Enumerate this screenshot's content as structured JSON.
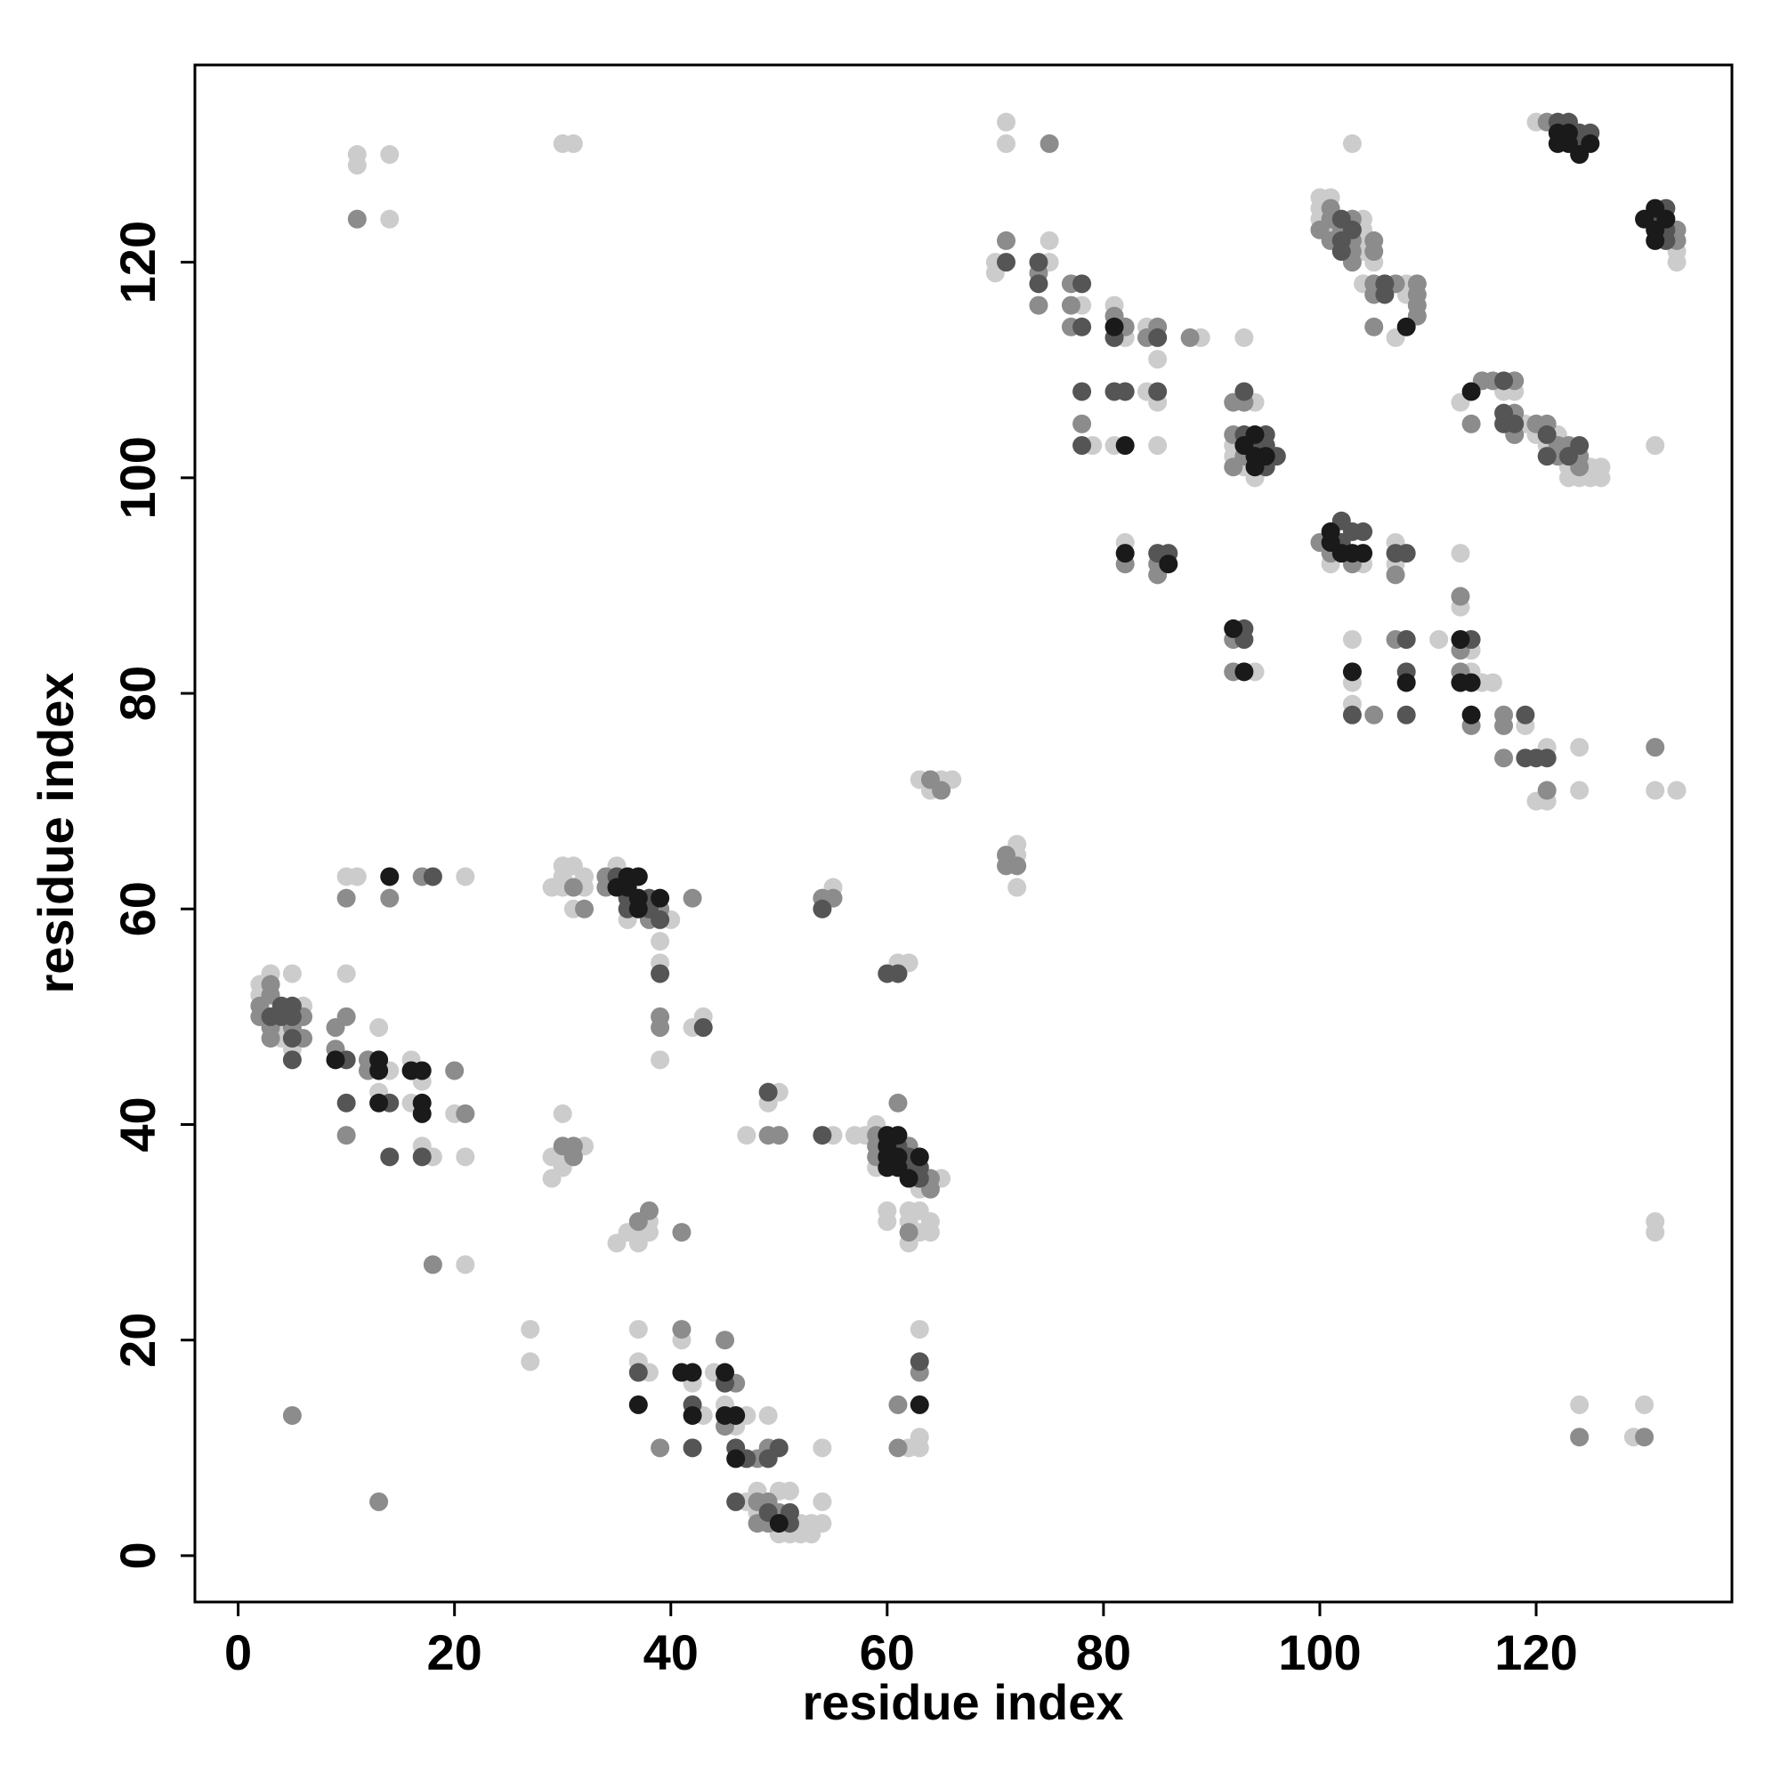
{
  "chart_data": {
    "type": "scatter",
    "xlabel": "residue index",
    "ylabel": "residue index",
    "xlim": [
      -4,
      138.1
    ],
    "ylim": [
      -4.3,
      138.3
    ],
    "xticks": [
      0,
      20,
      40,
      60,
      80,
      100,
      120
    ],
    "yticks": [
      0,
      20,
      40,
      60,
      80,
      100,
      120
    ],
    "series": [
      {
        "color": "#cccccc",
        "x": [
          11,
          11,
          14,
          14,
          30,
          31,
          71,
          71,
          75,
          70,
          70,
          75,
          78,
          81,
          82,
          84,
          85,
          89,
          93,
          79,
          84,
          85,
          81,
          85,
          94,
          92,
          92,
          93,
          94,
          82,
          94,
          100,
          101,
          100,
          100,
          104,
          101,
          104,
          104,
          104,
          105,
          104,
          108,
          108,
          107,
          103,
          113,
          117,
          118,
          119,
          120,
          121,
          122,
          123,
          125,
          126,
          123,
          124,
          125,
          126,
          131,
          120,
          133,
          133,
          101,
          104,
          107,
          107,
          111,
          103,
          103,
          103,
          113,
          113,
          114,
          114,
          115,
          116,
          119,
          121,
          121,
          120,
          124,
          124,
          131,
          133,
          65,
          66,
          64,
          63,
          72,
          72,
          72,
          10,
          11,
          21,
          10,
          2,
          3,
          5,
          2,
          6,
          4,
          4,
          5,
          13,
          14,
          16,
          13,
          16,
          17,
          20,
          17,
          18,
          21,
          21,
          29,
          30,
          32,
          30,
          31,
          30,
          32,
          31,
          35,
          36,
          40,
          39,
          39,
          39,
          42,
          43,
          29,
          29,
          30,
          32,
          30,
          30,
          35,
          36,
          38,
          37,
          38,
          37,
          47,
          50,
          49,
          55,
          55,
          57,
          58,
          59,
          65,
          63,
          59,
          61,
          62,
          60,
          60,
          62,
          63,
          62,
          64,
          63,
          64,
          62,
          27,
          27,
          37,
          37,
          38,
          41,
          44,
          42,
          45,
          43,
          47,
          46,
          49,
          47,
          48,
          48,
          50,
          51,
          52,
          53,
          50,
          51,
          52,
          53,
          54,
          54,
          54,
          62,
          63,
          63,
          63,
          124,
          129,
          130,
          131,
          131
        ],
        "y": [
          130,
          129,
          130,
          124,
          131,
          131,
          133,
          131,
          122,
          120,
          119,
          120,
          116,
          116,
          113,
          114,
          111,
          113,
          113,
          103,
          108,
          107,
          103,
          103,
          107,
          103,
          102,
          101,
          100,
          94,
          82,
          126,
          126,
          125,
          124,
          124,
          123,
          123,
          122,
          121,
          120,
          118,
          118,
          117,
          113,
          131,
          107,
          108,
          108,
          105,
          104,
          103,
          104,
          101,
          101,
          101,
          100,
          100,
          100,
          100,
          103,
          133,
          121,
          120,
          92,
          92,
          94,
          92,
          85,
          85,
          81,
          79,
          93,
          88,
          84,
          82,
          81,
          81,
          77,
          75,
          70,
          70,
          75,
          71,
          71,
          71,
          72,
          72,
          71,
          72,
          66,
          65,
          62,
          63,
          63,
          63,
          54,
          53,
          54,
          54,
          52,
          51,
          49,
          48,
          47,
          49,
          45,
          46,
          43,
          42,
          44,
          41,
          38,
          37,
          37,
          27,
          62,
          62,
          62,
          64,
          64,
          63,
          63,
          60,
          64,
          59,
          59,
          57,
          55,
          46,
          49,
          50,
          37,
          35,
          41,
          38,
          37,
          36,
          29,
          30,
          31,
          30,
          30,
          29,
          39,
          43,
          42,
          39,
          62,
          39,
          39,
          40,
          35,
          34,
          36,
          55,
          55,
          32,
          31,
          32,
          32,
          31,
          31,
          30,
          30,
          29,
          21,
          18,
          21,
          18,
          17,
          20,
          17,
          16,
          14,
          13,
          13,
          12,
          13,
          5,
          6,
          4,
          6,
          6,
          3,
          3,
          2,
          2,
          2,
          2,
          5,
          3,
          10,
          10,
          21,
          11,
          10,
          14,
          11,
          14,
          31,
          30
        ]
      },
      {
        "color": "#8c8c8c",
        "x": [
          11,
          75,
          71,
          74,
          74,
          77,
          77,
          77,
          81,
          82,
          84,
          85,
          88,
          78,
          92,
          93,
          92,
          93,
          92,
          82,
          85,
          85,
          92,
          92,
          101,
          101,
          103,
          100,
          102,
          101,
          103,
          105,
          103,
          105,
          103,
          105,
          107,
          109,
          105,
          109,
          109,
          109,
          105,
          115,
          116,
          118,
          114,
          118,
          118,
          120,
          121,
          122,
          122,
          123,
          124,
          124,
          121,
          133,
          133,
          100,
          101,
          103,
          107,
          105,
          107,
          113,
          113,
          113,
          114,
          117,
          117,
          117,
          121,
          131,
          64,
          65,
          71,
          71,
          72,
          17,
          10,
          14,
          3,
          2,
          3,
          2,
          6,
          3,
          5,
          3,
          6,
          9,
          10,
          9,
          12,
          12,
          20,
          21,
          10,
          18,
          31,
          32,
          34,
          34,
          38,
          39,
          39,
          39,
          42,
          30,
          31,
          31,
          37,
          38,
          41,
          49,
          50,
          54,
          55,
          59,
          59,
          62,
          59,
          64,
          64,
          61,
          62,
          5,
          13,
          41,
          45,
          46,
          45,
          48,
          49,
          39,
          49,
          48,
          50,
          48,
          49,
          61,
          61,
          63,
          124,
          130
        ],
        "y": [
          124,
          131,
          122,
          119,
          116,
          118,
          116,
          114,
          115,
          114,
          113,
          114,
          113,
          105,
          107,
          107,
          104,
          102,
          101,
          92,
          92,
          91,
          85,
          82,
          125,
          124,
          124,
          123,
          123,
          122,
          122,
          122,
          121,
          121,
          120,
          118,
          118,
          118,
          117,
          117,
          116,
          115,
          114,
          109,
          109,
          109,
          105,
          106,
          104,
          105,
          105,
          102,
          103,
          103,
          102,
          101,
          133,
          123,
          122,
          94,
          93,
          92,
          91,
          78,
          85,
          89,
          84,
          82,
          77,
          78,
          77,
          74,
          71,
          75,
          72,
          71,
          65,
          64,
          64,
          63,
          61,
          61,
          53,
          51,
          52,
          50,
          50,
          49,
          49,
          48,
          48,
          49,
          50,
          47,
          46,
          45,
          45,
          41,
          39,
          27,
          62,
          60,
          62,
          63,
          59,
          60,
          50,
          49,
          61,
          38,
          38,
          37,
          31,
          32,
          30,
          39,
          39,
          61,
          61,
          39,
          38,
          38,
          37,
          35,
          34,
          42,
          30,
          13,
          5,
          21,
          20,
          16,
          12,
          9,
          10,
          10,
          5,
          5,
          4,
          3,
          3,
          14,
          10,
          17,
          11,
          11
        ]
      },
      {
        "color": "#555555",
        "x": [
          71,
          74,
          74,
          78,
          78,
          81,
          85,
          78,
          78,
          81,
          82,
          85,
          93,
          93,
          95,
          94,
          95,
          96,
          95,
          85,
          86,
          93,
          93,
          102,
          103,
          102,
          102,
          106,
          106,
          117,
          117,
          117,
          118,
          121,
          121,
          124,
          123,
          122,
          123,
          124,
          125,
          124,
          132,
          131,
          132,
          132,
          102,
          102,
          103,
          104,
          107,
          108,
          103,
          108,
          108,
          108,
          114,
          119,
          119,
          120,
          121,
          18,
          4,
          5,
          3,
          4,
          5,
          5,
          5,
          10,
          14,
          10,
          14,
          17,
          35,
          36,
          38,
          36,
          38,
          39,
          39,
          43,
          49,
          54,
          54,
          61,
          62,
          62,
          63,
          63,
          37,
          45,
          42,
          42,
          46,
          47,
          49,
          50,
          46,
          49,
          51,
          51,
          63,
          60,
          61
        ],
        "y": [
          120,
          120,
          118,
          118,
          114,
          113,
          113,
          108,
          103,
          108,
          108,
          108,
          108,
          104,
          104,
          103,
          103,
          102,
          101,
          93,
          93,
          86,
          85,
          124,
          123,
          122,
          121,
          118,
          117,
          109,
          106,
          105,
          105,
          104,
          102,
          103,
          102,
          133,
          133,
          132,
          132,
          131,
          125,
          124,
          123,
          122,
          96,
          94,
          95,
          95,
          93,
          93,
          78,
          85,
          82,
          78,
          85,
          78,
          74,
          74,
          74,
          63,
          51,
          51,
          50,
          50,
          50,
          48,
          46,
          46,
          42,
          42,
          37,
          37,
          63,
          61,
          61,
          60,
          60,
          59,
          54,
          49,
          43,
          39,
          60,
          38,
          37,
          36,
          36,
          35,
          17,
          16,
          14,
          10,
          10,
          9,
          9,
          10,
          5,
          4,
          4,
          3,
          18,
          54,
          54
        ]
      },
      {
        "color": "#1a1a1a",
        "x": [
          114,
          94,
          93,
          94,
          95,
          94,
          81,
          82,
          82,
          86,
          92,
          93,
          108,
          122,
          123,
          122,
          123,
          125,
          124,
          130,
          131,
          132,
          131,
          131,
          101,
          101,
          102,
          103,
          104,
          103,
          108,
          113,
          113,
          114,
          114,
          14,
          9,
          13,
          13,
          16,
          17,
          13,
          17,
          17,
          36,
          37,
          35,
          36,
          37,
          39,
          37,
          60,
          61,
          60,
          60,
          61,
          63,
          60,
          61,
          62,
          37,
          41,
          42,
          45,
          42,
          45,
          46,
          46,
          50,
          63
        ],
        "y": [
          108,
          104,
          103,
          102,
          102,
          101,
          114,
          103,
          93,
          92,
          86,
          82,
          114,
          132,
          132,
          131,
          131,
          131,
          130,
          124,
          125,
          124,
          123,
          122,
          95,
          94,
          93,
          93,
          93,
          82,
          81,
          85,
          81,
          81,
          78,
          63,
          46,
          46,
          45,
          45,
          45,
          42,
          42,
          41,
          63,
          63,
          62,
          62,
          61,
          61,
          60,
          39,
          39,
          38,
          37,
          37,
          37,
          36,
          36,
          35,
          14,
          17,
          17,
          17,
          13,
          13,
          13,
          9,
          3,
          14
        ]
      }
    ]
  }
}
